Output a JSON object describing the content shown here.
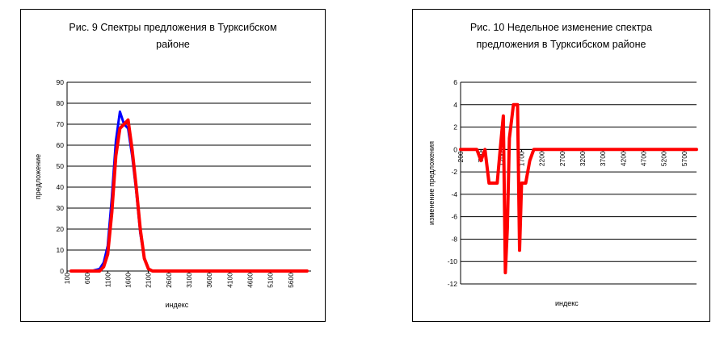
{
  "chart_data": [
    {
      "type": "line",
      "title_line1": "Рис. 9 Спектры предложения в  Турксибском",
      "title_line2": "районе",
      "xlabel": "индекс",
      "ylabel": "предложение",
      "ylim": [
        0,
        90
      ],
      "yticks": [
        "0",
        "10",
        "20",
        "30",
        "40",
        "50",
        "60",
        "70",
        "80",
        "90"
      ],
      "xlim": [
        100,
        6100
      ],
      "xticks": [
        "100",
        "600",
        "1100",
        "1600",
        "2100",
        "2600",
        "3100",
        "3600",
        "4100",
        "4600",
        "5100",
        "5600"
      ],
      "grid": "horizontal",
      "series": [
        {
          "color": "#0000ff",
          "x": [
            200,
            700,
            900,
            1000,
            1100,
            1200,
            1300,
            1400,
            1500,
            1600,
            1700,
            1800,
            1900,
            2000,
            2100,
            2200,
            3000,
            6000
          ],
          "y": [
            0,
            0,
            1,
            4,
            12,
            35,
            62,
            76,
            70,
            68,
            55,
            38,
            18,
            6,
            1,
            0,
            0,
            0
          ]
        },
        {
          "color": "#ff0000",
          "x": [
            200,
            700,
            900,
            1000,
            1100,
            1200,
            1300,
            1400,
            1500,
            1600,
            1700,
            1800,
            1900,
            2000,
            2100,
            2200,
            3000,
            6000
          ],
          "y": [
            0,
            0,
            0,
            2,
            8,
            28,
            55,
            68,
            70,
            72,
            58,
            40,
            20,
            6,
            1,
            0,
            0,
            0
          ]
        }
      ]
    },
    {
      "type": "line",
      "title_line1": "Рис. 10 Недельное изменение спектра",
      "title_line2": "предложения в  Турксибском районе",
      "xlabel": "индекс",
      "ylabel": "изменение предложения",
      "ylim": [
        -12,
        6
      ],
      "yticks": [
        "-12",
        "-10",
        "-8",
        "-6",
        "-4",
        "-2",
        "0",
        "2",
        "4",
        "6"
      ],
      "xlim": [
        200,
        6000
      ],
      "xticks": [
        "200",
        "700",
        "1200",
        "1700",
        "2200",
        "2700",
        "3200",
        "3700",
        "4200",
        "4700",
        "5200",
        "5700"
      ],
      "grid": "horizontal",
      "series": [
        {
          "color": "#ff0000",
          "x": [
            200,
            400,
            600,
            700,
            800,
            900,
            1000,
            1100,
            1200,
            1250,
            1300,
            1350,
            1400,
            1500,
            1550,
            1600,
            1650,
            1700,
            1800,
            1900,
            2000,
            2100,
            2200,
            2300,
            6000
          ],
          "y": [
            0,
            0,
            0,
            -1,
            0,
            -3,
            -3,
            -3,
            1,
            3,
            -11,
            -7,
            1,
            4,
            4,
            4,
            -9,
            -3,
            -3,
            -1,
            0,
            0,
            0,
            0,
            0
          ]
        }
      ]
    }
  ]
}
